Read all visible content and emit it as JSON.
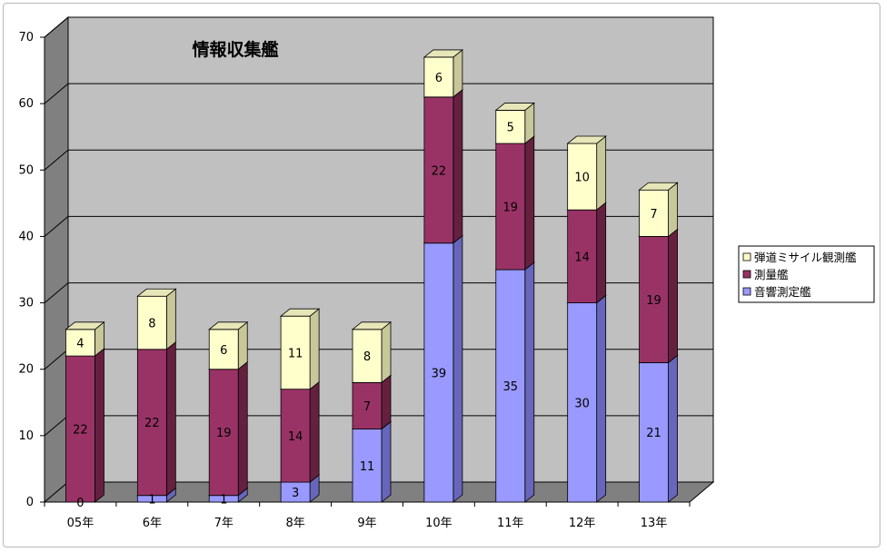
{
  "chart_data": {
    "type": "bar",
    "stacked": true,
    "three_d": true,
    "title": "情報収集艦",
    "categories": [
      "05年",
      "6年",
      "7年",
      "8年",
      "9年",
      "10年",
      "11年",
      "12年",
      "13年"
    ],
    "series": [
      {
        "name": "音響測定艦",
        "values": [
          0,
          1,
          1,
          3,
          11,
          39,
          35,
          30,
          21
        ],
        "color": "#9999ff",
        "side_color": "#6666bb",
        "top_color": "#ccccff"
      },
      {
        "name": "測量艦",
        "values": [
          22,
          22,
          19,
          14,
          7,
          22,
          19,
          14,
          19
        ],
        "color": "#993366",
        "side_color": "#66203f",
        "top_color": "#b76688"
      },
      {
        "name": "弾道ミサイル観測艦",
        "values": [
          4,
          8,
          6,
          11,
          8,
          6,
          5,
          10,
          7
        ],
        "color": "#ffffcc",
        "side_color": "#c7c79a",
        "top_color": "#e6e6b8"
      }
    ],
    "data_labels": [
      [
        "0",
        "1",
        "1",
        "3",
        "11",
        "39",
        "35",
        "30",
        "21"
      ],
      [
        "22",
        "22",
        "19",
        "14",
        "7",
        "22",
        "19",
        "14",
        "19"
      ],
      [
        "4",
        "8",
        "6",
        "11",
        "8",
        "6",
        "5",
        "10",
        "7"
      ]
    ],
    "ylim": [
      0,
      70
    ],
    "y_ticks": [
      "0",
      "10",
      "20",
      "30",
      "40",
      "50",
      "60",
      "70"
    ],
    "grid": true,
    "legend_position": "right",
    "wall_color": "#c0c0c0",
    "side_wall_color": "#808080",
    "floor_color": "#808080"
  }
}
